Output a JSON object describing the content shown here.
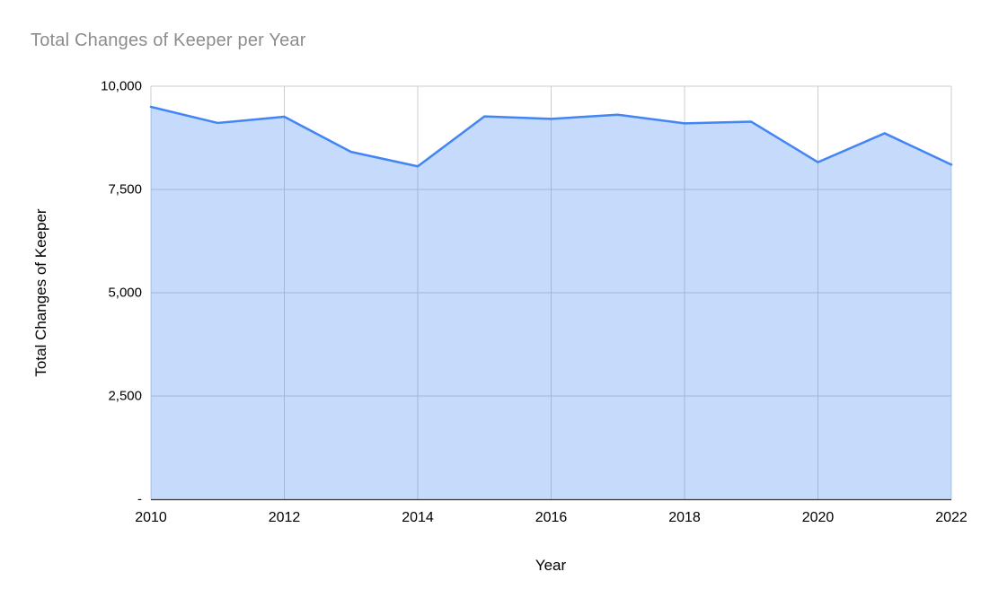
{
  "chart_data": {
    "type": "area",
    "title": "Total Changes of Keeper per Year",
    "xlabel": "Year",
    "ylabel": "Total Changes of Keeper",
    "x": [
      2010,
      2011,
      2012,
      2013,
      2014,
      2015,
      2016,
      2017,
      2018,
      2019,
      2020,
      2021,
      2022
    ],
    "values": [
      9500,
      9110,
      9260,
      8410,
      8060,
      9270,
      9210,
      9310,
      9100,
      9140,
      8160,
      8860,
      8100
    ],
    "xlim": [
      2010,
      2022
    ],
    "ylim": [
      0,
      10000
    ],
    "grid": true,
    "legend_position": "none",
    "x_ticks": [
      {
        "value": 2010,
        "label": "2010"
      },
      {
        "value": 2012,
        "label": "2012"
      },
      {
        "value": 2014,
        "label": "2014"
      },
      {
        "value": 2016,
        "label": "2016"
      },
      {
        "value": 2018,
        "label": "2018"
      },
      {
        "value": 2020,
        "label": "2020"
      },
      {
        "value": 2022,
        "label": "2022"
      }
    ],
    "y_ticks": [
      {
        "value": 0,
        "label": "-"
      },
      {
        "value": 2500,
        "label": "2,500"
      },
      {
        "value": 5000,
        "label": "5,000"
      },
      {
        "value": 7500,
        "label": "7,500"
      },
      {
        "value": 10000,
        "label": "10,000"
      }
    ],
    "colors": {
      "series": "#4285f4",
      "fill_opacity": 0.3,
      "gridline": "#cccccc",
      "axis_line": "#333333",
      "title": "#8c8c8c",
      "tick_label": "#000000"
    }
  }
}
